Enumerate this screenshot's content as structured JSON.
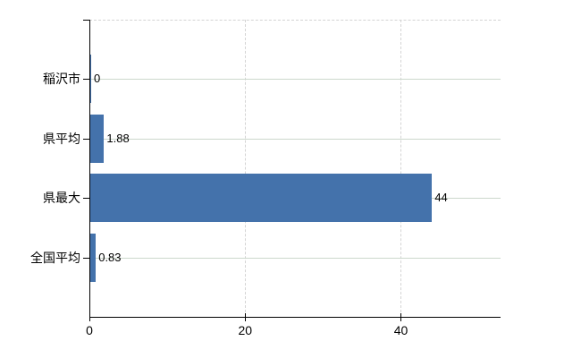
{
  "chart_data": {
    "type": "bar",
    "orientation": "horizontal",
    "title": "",
    "xlabel": "",
    "ylabel": "",
    "categories": [
      "稲沢市",
      "県平均",
      "県最大",
      "全国平均"
    ],
    "values": [
      0,
      1.88,
      44,
      0.83
    ],
    "value_labels": [
      "0",
      "1.88",
      "44",
      "0.83"
    ],
    "x_ticks": [
      0,
      20,
      40
    ],
    "x_tick_labels": [
      "0",
      "20",
      "40"
    ],
    "xlim": [
      0,
      52.8
    ],
    "grid": true,
    "legend": false,
    "bar_color": "#4472ab",
    "hgrid_color": "#ccd8cc",
    "dashed_grid_color": "#d4d4d4",
    "axis_color": "#000000",
    "text_color": "#000000",
    "background_color": "#ffffff"
  }
}
